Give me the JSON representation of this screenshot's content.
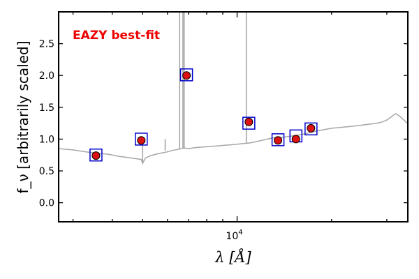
{
  "chart_data": {
    "type": "scatter",
    "title": "",
    "annotation": "EAZY best-fit",
    "xlabel": "λ [Å]",
    "ylabel": "f_ν [arbitrarily scaled]",
    "xscale": "log",
    "xlim": [
      2700,
      35000
    ],
    "ylim": [
      -0.3,
      3.0
    ],
    "x_tick_labels": [
      {
        "value": 10000,
        "label": "10"
      }
    ],
    "y_ticks": [
      0.0,
      0.5,
      1.0,
      1.5,
      2.0,
      2.5
    ],
    "y_tick_labels": [
      "0.0",
      "0.5",
      "1.0",
      "1.5",
      "2.0",
      "2.5"
    ],
    "grid": false,
    "series": [
      {
        "kind": "sed-line",
        "color": "#a6a6a6",
        "x": [
          2700,
          3000,
          3300,
          3600,
          3900,
          4200,
          4500,
          4800,
          4950,
          5000,
          5100,
          5300,
          5600,
          6000,
          6200,
          6500,
          6800,
          7000,
          7200,
          7500,
          8000,
          8500,
          9000,
          9500,
          10000,
          10500,
          11000,
          11500,
          12000,
          12500,
          13000,
          14000,
          15000,
          16000,
          17000,
          18000,
          19000,
          20000,
          21000,
          22000,
          23000,
          24000,
          25000,
          26000,
          27000,
          28000,
          29000,
          30000,
          31000,
          32000,
          33000,
          34000,
          35000
        ],
        "y": [
          0.85,
          0.83,
          0.8,
          0.78,
          0.76,
          0.73,
          0.71,
          0.69,
          0.68,
          0.62,
          0.7,
          0.74,
          0.77,
          0.8,
          0.82,
          0.84,
          0.86,
          0.85,
          0.86,
          0.87,
          0.88,
          0.89,
          0.9,
          0.91,
          0.92,
          0.93,
          0.94,
          0.96,
          0.98,
          1.0,
          1.02,
          1.03,
          1.05,
          1.07,
          1.1,
          1.13,
          1.15,
          1.17,
          1.18,
          1.19,
          1.2,
          1.21,
          1.22,
          1.23,
          1.24,
          1.25,
          1.27,
          1.3,
          1.35,
          1.4,
          1.36,
          1.3,
          1.24
        ]
      },
      {
        "kind": "emission-lines",
        "color": "#a6a6a6",
        "lines": [
          {
            "x": 5000,
            "base": 0.62,
            "top": 1.0
          },
          {
            "x": 5900,
            "base": 0.82,
            "top": 1.0
          },
          {
            "x": 6560,
            "base": 0.84,
            "top": 3.0
          },
          {
            "x": 6720,
            "base": 0.85,
            "top": 3.0
          },
          {
            "x": 6780,
            "base": 0.85,
            "top": 3.0
          },
          {
            "x": 10700,
            "base": 0.93,
            "top": 3.0
          }
        ]
      },
      {
        "kind": "model-photometry",
        "marker": "square",
        "color": "#0000cc",
        "x": [
          3550,
          4950,
          6900,
          10900,
          13500,
          15400,
          17200
        ],
        "y": [
          0.75,
          1.0,
          2.01,
          1.25,
          0.99,
          1.05,
          1.16
        ]
      },
      {
        "kind": "observed-photometry",
        "marker": "circle",
        "color": "#dd1111",
        "x": [
          3550,
          4950,
          6900,
          10900,
          13500,
          15400,
          17200
        ],
        "y": [
          0.74,
          0.98,
          2.0,
          1.27,
          0.98,
          1.0,
          1.17
        ]
      }
    ]
  }
}
